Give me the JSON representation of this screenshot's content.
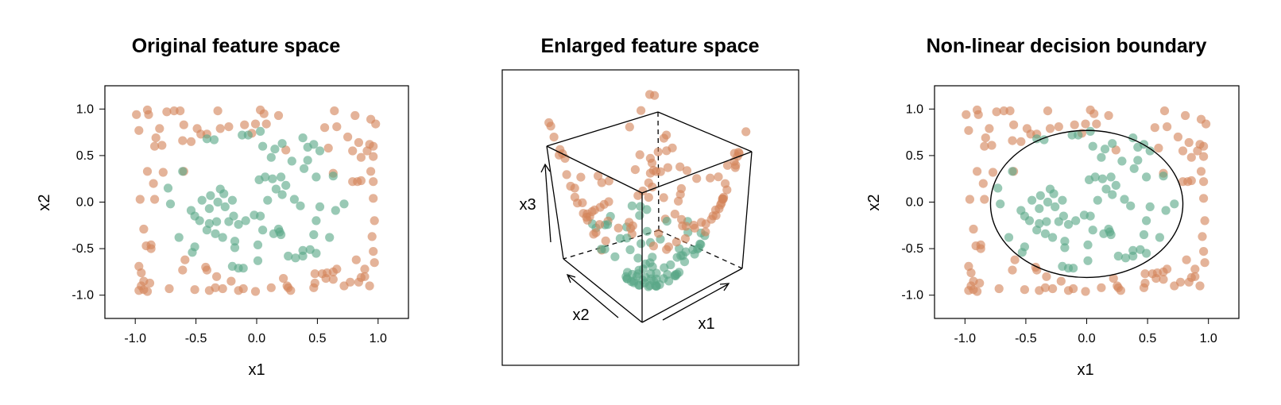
{
  "colors": {
    "class_outer": "#d4855a",
    "class_inner": "#5aa887"
  },
  "chart_data": [
    {
      "type": "scatter",
      "title": "Original feature space",
      "xlabel": "x1",
      "ylabel": "x2",
      "xlim": [
        -1.25,
        1.25
      ],
      "ylim": [
        -1.25,
        1.25
      ],
      "xticks": [
        "-1.0",
        "-0.5",
        "0.0",
        "0.5",
        "1.0"
      ],
      "yticks": [
        "-1.0",
        "-0.5",
        "0.0",
        "0.5",
        "1.0"
      ],
      "grid": false,
      "series": [
        {
          "color": "#d4855a",
          "points": [
            [
              -0.99,
              0.94
            ],
            [
              -0.9,
              0.99
            ],
            [
              -0.89,
              0.94
            ],
            [
              -0.74,
              0.97
            ],
            [
              -0.68,
              0.98
            ],
            [
              -0.63,
              0.98
            ],
            [
              -0.32,
              0.98
            ],
            [
              0.03,
              0.99
            ],
            [
              -0.97,
              0.77
            ],
            [
              -0.8,
              0.79
            ],
            [
              -0.6,
              0.83
            ],
            [
              -0.49,
              0.79
            ],
            [
              -0.46,
              0.73
            ],
            [
              -0.3,
              0.79
            ],
            [
              -0.23,
              0.81
            ],
            [
              -0.1,
              0.83
            ],
            [
              -0.01,
              0.84
            ],
            [
              -0.04,
              0.74
            ],
            [
              0.08,
              0.84
            ],
            [
              0.06,
              0.95
            ],
            [
              0.18,
              0.93
            ],
            [
              0.64,
              0.98
            ],
            [
              0.81,
              0.93
            ],
            [
              0.94,
              0.89
            ],
            [
              0.98,
              0.84
            ],
            [
              0.56,
              0.8
            ],
            [
              0.66,
              0.81
            ],
            [
              0.75,
              0.7
            ],
            [
              0.84,
              0.64
            ],
            [
              0.91,
              0.55
            ],
            [
              0.93,
              0.62
            ],
            [
              0.96,
              0.6
            ],
            [
              -0.83,
              0.69
            ],
            [
              -0.84,
              0.6
            ],
            [
              -0.78,
              0.61
            ],
            [
              -0.61,
              0.66
            ],
            [
              -0.54,
              0.65
            ],
            [
              -0.41,
              0.73
            ],
            [
              0.24,
              0.56
            ],
            [
              0.59,
              0.58
            ],
            [
              0.79,
              0.55
            ],
            [
              0.86,
              0.48
            ],
            [
              0.96,
              0.49
            ],
            [
              -0.77,
              0.32
            ],
            [
              -0.9,
              0.33
            ],
            [
              -0.6,
              0.33
            ],
            [
              -0.85,
              0.2
            ],
            [
              0.63,
              0.31
            ],
            [
              0.79,
              0.22
            ],
            [
              0.83,
              0.22
            ],
            [
              0.86,
              0.23
            ],
            [
              0.94,
              0.33
            ],
            [
              0.96,
              0.22
            ],
            [
              -0.96,
              0.03
            ],
            [
              -0.84,
              0.03
            ],
            [
              0.96,
              0.04
            ],
            [
              0.97,
              -0.2
            ],
            [
              -0.93,
              -0.29
            ],
            [
              0.95,
              -0.37
            ],
            [
              -0.87,
              -0.46
            ],
            [
              -0.91,
              -0.47
            ],
            [
              -0.87,
              -0.5
            ],
            [
              0.96,
              -0.53
            ],
            [
              0.97,
              -0.65
            ],
            [
              -0.59,
              -0.62
            ],
            [
              0.82,
              -0.62
            ],
            [
              -0.97,
              -0.69
            ],
            [
              -0.95,
              -0.76
            ],
            [
              -0.61,
              -0.73
            ],
            [
              -0.41,
              -0.73
            ],
            [
              -0.42,
              -0.7
            ],
            [
              0.48,
              -0.77
            ],
            [
              0.54,
              -0.77
            ],
            [
              0.58,
              -0.76
            ],
            [
              0.63,
              -0.75
            ],
            [
              0.66,
              -0.72
            ],
            [
              0.89,
              -0.72
            ],
            [
              -0.93,
              -0.85
            ],
            [
              -0.88,
              -0.87
            ],
            [
              -0.95,
              -0.9
            ],
            [
              -0.93,
              -0.94
            ],
            [
              -0.97,
              -0.95
            ],
            [
              -0.9,
              -0.96
            ],
            [
              -0.72,
              -0.93
            ],
            [
              -0.51,
              -0.94
            ],
            [
              -0.34,
              -0.92
            ],
            [
              -0.39,
              -0.95
            ],
            [
              -0.28,
              -0.93
            ],
            [
              -0.21,
              -0.85
            ],
            [
              -0.15,
              -0.95
            ],
            [
              -0.11,
              -0.93
            ],
            [
              -0.01,
              -0.96
            ],
            [
              0.12,
              -0.92
            ],
            [
              0.25,
              -0.9
            ],
            [
              0.26,
              -0.92
            ],
            [
              0.28,
              -0.95
            ],
            [
              0.47,
              -0.92
            ],
            [
              0.48,
              -0.87
            ],
            [
              0.57,
              -0.82
            ],
            [
              0.63,
              -0.83
            ],
            [
              0.72,
              -0.9
            ],
            [
              0.77,
              -0.86
            ],
            [
              0.86,
              -0.81
            ],
            [
              0.89,
              -0.8
            ],
            [
              0.93,
              -0.9
            ],
            [
              0.84,
              -0.86
            ],
            [
              0.22,
              -0.82
            ],
            [
              -0.33,
              -0.8
            ]
          ]
        },
        {
          "color": "#5aa887",
          "points": [
            [
              -0.41,
              0.68
            ],
            [
              -0.35,
              0.67
            ],
            [
              -0.12,
              0.72
            ],
            [
              -0.07,
              0.72
            ],
            [
              0.03,
              0.76
            ],
            [
              0.05,
              0.6
            ],
            [
              0.15,
              0.57
            ],
            [
              0.21,
              0.63
            ],
            [
              0.38,
              0.69
            ],
            [
              0.47,
              0.62
            ],
            [
              0.42,
              0.59
            ],
            [
              0.52,
              0.55
            ],
            [
              0.42,
              0.45
            ],
            [
              0.29,
              0.44
            ],
            [
              0.12,
              0.48
            ],
            [
              0.39,
              0.36
            ],
            [
              0.49,
              0.27
            ],
            [
              0.63,
              0.28
            ],
            [
              -0.61,
              0.33
            ],
            [
              -0.73,
              0.15
            ],
            [
              -0.38,
              0.07
            ],
            [
              -0.3,
              0.14
            ],
            [
              -0.27,
              0.09
            ],
            [
              -0.45,
              0.02
            ],
            [
              -0.39,
              -0.07
            ],
            [
              -0.32,
              0.0
            ],
            [
              -0.26,
              -0.05
            ],
            [
              -0.2,
              0.02
            ],
            [
              -0.71,
              -0.02
            ],
            [
              -0.54,
              -0.09
            ],
            [
              -0.51,
              -0.15
            ],
            [
              -0.47,
              -0.2
            ],
            [
              -0.39,
              -0.23
            ],
            [
              -0.33,
              -0.21
            ],
            [
              -0.41,
              -0.3
            ],
            [
              -0.34,
              -0.34
            ],
            [
              -0.28,
              -0.38
            ],
            [
              -0.23,
              -0.21
            ],
            [
              -0.19,
              -0.15
            ],
            [
              -0.15,
              -0.24
            ],
            [
              -0.09,
              -0.2
            ],
            [
              -0.18,
              -0.42
            ],
            [
              -0.18,
              -0.49
            ],
            [
              -0.64,
              -0.38
            ],
            [
              -0.51,
              -0.48
            ],
            [
              -0.53,
              -0.54
            ],
            [
              -0.02,
              -0.14
            ],
            [
              0.03,
              -0.15
            ],
            [
              0.05,
              -0.3
            ],
            [
              0.01,
              -0.46
            ],
            [
              0.14,
              -0.34
            ],
            [
              0.19,
              -0.32
            ],
            [
              0.2,
              -0.35
            ],
            [
              0.01,
              -0.63
            ],
            [
              0.26,
              -0.58
            ],
            [
              0.32,
              -0.6
            ],
            [
              0.38,
              -0.52
            ],
            [
              0.38,
              -0.58
            ],
            [
              0.44,
              -0.51
            ],
            [
              0.49,
              -0.55
            ],
            [
              -0.15,
              -0.71
            ],
            [
              -0.11,
              -0.71
            ],
            [
              -0.2,
              -0.69
            ],
            [
              0.13,
              0.25
            ],
            [
              0.2,
              0.27
            ],
            [
              0.07,
              0.27
            ],
            [
              0.02,
              0.24
            ],
            [
              0.24,
              0.18
            ],
            [
              0.21,
              0.08
            ],
            [
              0.31,
              0.03
            ],
            [
              0.09,
              0.02
            ],
            [
              0.36,
              -0.04
            ],
            [
              0.52,
              -0.05
            ],
            [
              0.49,
              -0.2
            ],
            [
              0.65,
              -0.09
            ],
            [
              0.47,
              -0.35
            ],
            [
              0.6,
              -0.38
            ],
            [
              0.72,
              -0.02
            ],
            [
              0.18,
              -0.29
            ],
            [
              0.16,
              0.14
            ]
          ]
        }
      ]
    },
    {
      "type": "scatter3d",
      "title": "Enlarged feature space",
      "xlabel": "x1",
      "ylabel": "x2",
      "zlabel": "x3",
      "grid": false
    },
    {
      "type": "scatter",
      "title": "Non-linear decision boundary",
      "xlabel": "x1",
      "ylabel": "x2",
      "xlim": [
        -1.25,
        1.25
      ],
      "ylim": [
        -1.25,
        1.25
      ],
      "xticks": [
        "-1.0",
        "-0.5",
        "0.0",
        "0.5",
        "1.0"
      ],
      "yticks": [
        "-1.0",
        "-0.5",
        "0.0",
        "0.5",
        "1.0"
      ],
      "grid": false,
      "boundary": {
        "shape": "ellipse",
        "center": [
          0.0,
          -0.02
        ],
        "radius_x": 0.79,
        "radius_y": 0.79
      }
    }
  ]
}
